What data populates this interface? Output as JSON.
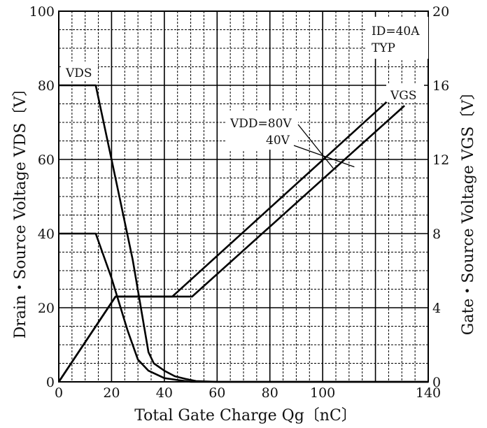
{
  "chart_data": {
    "type": "line",
    "xlabel": "Total Gate Charge  Qg〔nC〕",
    "ylabel_left": "Drain・Source Voltage  VDS〔V〕",
    "ylabel_right": "Gate・Source Voltage  VGS〔V〕",
    "xlim": [
      0,
      140
    ],
    "ylim_left": [
      0,
      100
    ],
    "ylim_right": [
      0,
      20
    ],
    "x_ticks": [
      "0",
      "20",
      "40",
      "60",
      "80",
      "100",
      "140"
    ],
    "y_left_ticks": [
      "0",
      "20",
      "40",
      "60",
      "80",
      "100"
    ],
    "y_right_ticks": [
      "0",
      "4",
      "8",
      "12",
      "16",
      "20"
    ],
    "grid": true,
    "annotations": {
      "conditions_line1": "ID=40A",
      "conditions_line2": "TYP",
      "vds_label": "VDS",
      "vgs_label": "VGS",
      "vdd_80": "VDD=80V",
      "vdd_40": "40V"
    },
    "series": [
      {
        "group": "vds",
        "axis": "left",
        "x": [
          0,
          14,
          20,
          26,
          30,
          34,
          40,
          45,
          50,
          60,
          140
        ],
        "y": [
          40,
          40,
          28,
          14,
          6,
          3,
          1,
          0.5,
          0,
          0,
          0
        ]
      },
      {
        "group": "vds",
        "axis": "left",
        "x": [
          0,
          14,
          20,
          28,
          34,
          36,
          40,
          44,
          48,
          52,
          60,
          140
        ],
        "y": [
          80,
          80,
          60,
          33,
          8,
          5,
          3,
          1.5,
          0.8,
          0.2,
          0,
          0
        ]
      },
      {
        "group": "vgs",
        "axis": "right",
        "x": [
          0,
          21.5,
          43,
          125
        ],
        "y": [
          0,
          4.6,
          4.6,
          15.2
        ]
      },
      {
        "group": "vgs",
        "axis": "right",
        "x": [
          0,
          21.5,
          50.5,
          131
        ],
        "y": [
          0,
          4.6,
          4.6,
          14.9
        ]
      }
    ]
  }
}
